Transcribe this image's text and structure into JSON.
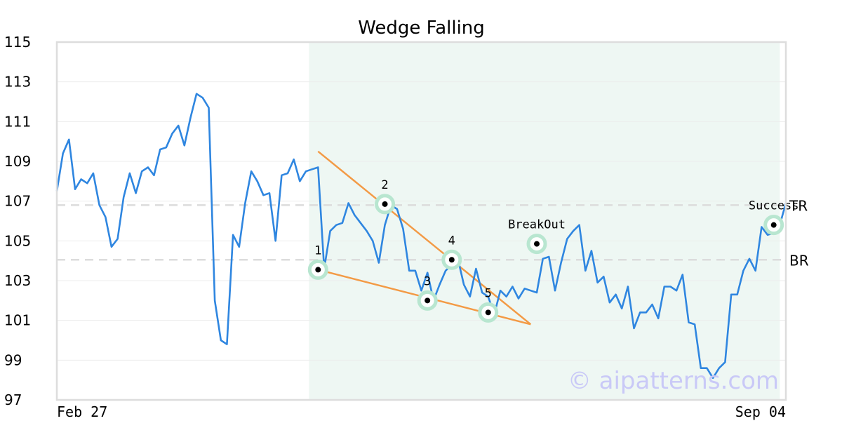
{
  "chart_data": {
    "type": "line",
    "title": "Wedge Falling",
    "ylim": [
      97,
      115
    ],
    "yticks": [
      "115",
      "113",
      "111",
      "109",
      "107",
      "105",
      "103",
      "101",
      "99",
      "97"
    ],
    "x_labels": [
      "Feb 27",
      "Sep 04"
    ],
    "grid": true,
    "series": [
      {
        "color": "#2f86e0",
        "values": [
          107.5,
          109.4,
          110.1,
          107.6,
          108.1,
          107.9,
          108.4,
          106.8,
          106.2,
          104.7,
          105.1,
          107.2,
          108.4,
          107.4,
          108.5,
          108.7,
          108.3,
          109.6,
          109.7,
          110.4,
          110.8,
          109.8,
          111.2,
          112.4,
          112.2,
          111.7,
          102.0,
          100.0,
          99.8,
          105.3,
          104.7,
          106.9,
          108.5,
          108.0,
          107.3,
          107.4,
          105.0,
          108.3,
          108.4,
          109.1,
          108.0,
          108.5,
          108.6,
          108.7,
          103.6,
          105.5,
          105.8,
          105.9,
          106.9,
          106.3,
          105.9,
          105.5,
          105.0,
          103.9,
          105.8,
          106.8,
          106.6,
          105.6,
          103.5,
          103.5,
          102.5,
          103.4,
          102.0,
          102.8,
          103.5,
          103.8,
          104.1,
          102.8,
          102.2,
          103.6,
          102.4,
          102.2,
          101.3,
          102.5,
          102.2,
          102.7,
          102.1,
          102.6,
          102.5,
          102.4,
          104.1,
          104.2,
          102.5,
          103.9,
          105.1,
          105.5,
          105.8,
          103.5,
          104.5,
          102.9,
          103.2,
          101.9,
          102.3,
          101.6,
          102.7,
          100.6,
          101.4,
          101.4,
          101.8,
          101.1,
          102.7,
          102.7,
          102.5,
          103.3,
          100.9,
          100.8,
          98.6,
          98.6,
          98.1,
          98.6,
          98.9,
          102.3,
          102.3,
          103.5,
          104.1,
          103.5,
          105.7,
          105.3,
          105.4,
          105.8,
          106.9
        ]
      }
    ],
    "levels": [
      {
        "label": "TR",
        "value": 106.8
      },
      {
        "label": "BR",
        "value": 104.05
      }
    ],
    "pattern_region": {
      "x_start": 41.5,
      "x_end": 119,
      "color": "#eef7f3"
    },
    "wedge_lines": [
      {
        "from": [
          43,
          109.5
        ],
        "to": [
          78,
          100.8
        ]
      },
      {
        "from": [
          43,
          103.55
        ],
        "to": [
          78,
          100.8
        ]
      }
    ],
    "points": [
      {
        "label": "1",
        "x": 43,
        "y": 103.55
      },
      {
        "label": "2",
        "x": 54,
        "y": 106.85
      },
      {
        "label": "3",
        "x": 61,
        "y": 102.0
      },
      {
        "label": "4",
        "x": 65,
        "y": 104.05
      },
      {
        "label": "5",
        "x": 71,
        "y": 101.4
      },
      {
        "label": "BreakOut",
        "x": 79,
        "y": 104.85
      },
      {
        "label": "Success",
        "x": 118,
        "y": 105.8
      }
    ],
    "watermark": "© aipatterns.com"
  }
}
